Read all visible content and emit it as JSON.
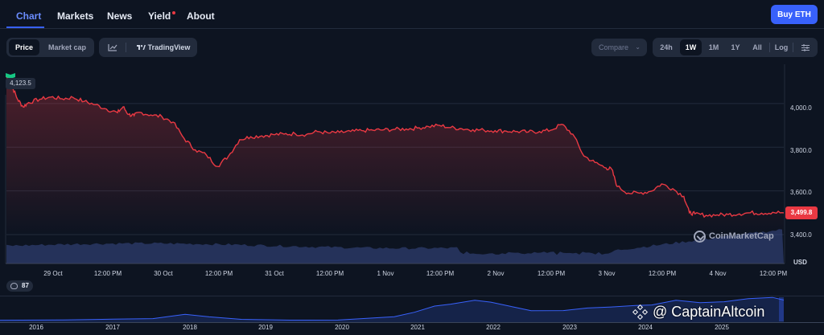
{
  "nav": {
    "tabs": [
      {
        "label": "Chart",
        "active": true
      },
      {
        "label": "Markets"
      },
      {
        "label": "News"
      },
      {
        "label": "Yield"
      },
      {
        "label": "About"
      }
    ],
    "buy_label": "Buy ETH"
  },
  "toolbar": {
    "view_toggle": [
      "Price",
      "Market cap"
    ],
    "selected_view": "Price",
    "tradingview_label": "TradingView",
    "compare_label": "Compare",
    "ranges": [
      "24h",
      "1W",
      "1M",
      "1Y",
      "All"
    ],
    "selected_range": "1W",
    "log_label": "Log",
    "icons": [
      "line-chart-icon",
      "tradingview-logo-icon",
      "chevron-down-icon",
      "settings-sliders-icon"
    ]
  },
  "chart_data": {
    "type": "line",
    "x_ticks": [
      "29 Oct",
      "12:00 PM",
      "30 Oct",
      "12:00 PM",
      "31 Oct",
      "12:00 PM",
      "1 Nov",
      "12:00 PM",
      "2 Nov",
      "12:00 PM",
      "3 Nov",
      "12:00 PM",
      "4 Nov",
      "12:00 PM"
    ],
    "y_ticks": [
      "4,000.0",
      "3,800.0",
      "3,600.0",
      "3,400.0"
    ],
    "y_unit": "USD",
    "ylim": [
      3400,
      4180
    ],
    "max_label": "4,123.5",
    "current_label": "3,499.8",
    "series": [
      {
        "color": "#ea3943",
        "x": [
          0,
          0.05,
          0.1,
          0.15,
          0.2,
          0.3,
          0.4,
          0.5,
          0.6,
          0.7,
          0.8,
          0.9,
          1.0,
          1.05,
          1.1,
          1.15,
          1.2,
          1.3,
          1.4,
          1.5,
          1.6,
          1.7,
          1.8,
          1.9,
          2.0,
          2.1,
          2.2,
          2.3,
          2.4,
          2.5,
          2.6,
          2.7,
          2.8,
          2.9,
          3.0,
          3.1,
          3.2,
          3.3,
          3.4,
          3.5,
          3.6,
          3.7,
          3.8,
          3.9,
          4.0,
          4.1,
          4.2,
          4.3,
          4.4,
          4.5,
          4.6,
          4.7,
          4.8,
          4.9,
          5.0,
          5.1,
          5.2,
          5.3,
          5.4,
          5.45,
          5.5,
          5.6,
          5.7,
          5.8,
          5.9,
          6.0,
          6.1,
          6.15,
          6.2,
          6.3,
          6.4,
          6.5,
          6.6,
          6.7,
          6.8,
          6.9,
          7.0
        ],
        "y": [
          4123.5,
          4080,
          4020,
          3985,
          4005,
          4020,
          4030,
          4022,
          4028,
          4010,
          3995,
          3975,
          3958,
          3985,
          3950,
          3945,
          3960,
          3948,
          3940,
          3915,
          3840,
          3788,
          3765,
          3712,
          3760,
          3835,
          3848,
          3852,
          3858,
          3860,
          3862,
          3858,
          3872,
          3865,
          3868,
          3872,
          3876,
          3878,
          3880,
          3882,
          3884,
          3888,
          3895,
          3900,
          3890,
          3885,
          3880,
          3878,
          3876,
          3874,
          3872,
          3870,
          3872,
          3878,
          3905,
          3860,
          3760,
          3730,
          3705,
          3700,
          3620,
          3590,
          3590,
          3598,
          3632,
          3610,
          3575,
          3500,
          3495,
          3488,
          3490,
          3492,
          3495,
          3500,
          3498,
          3502,
          3499.8
        ]
      }
    ],
    "navigator_ticks": [
      "2016",
      "2017",
      "2018",
      "2019",
      "2020",
      "2021",
      "2022",
      "2023",
      "2024",
      "2025"
    ]
  },
  "navigator_badge": "87",
  "watermark": "CoinMarketCap",
  "overlay_text": "@ CaptainAltcoin"
}
